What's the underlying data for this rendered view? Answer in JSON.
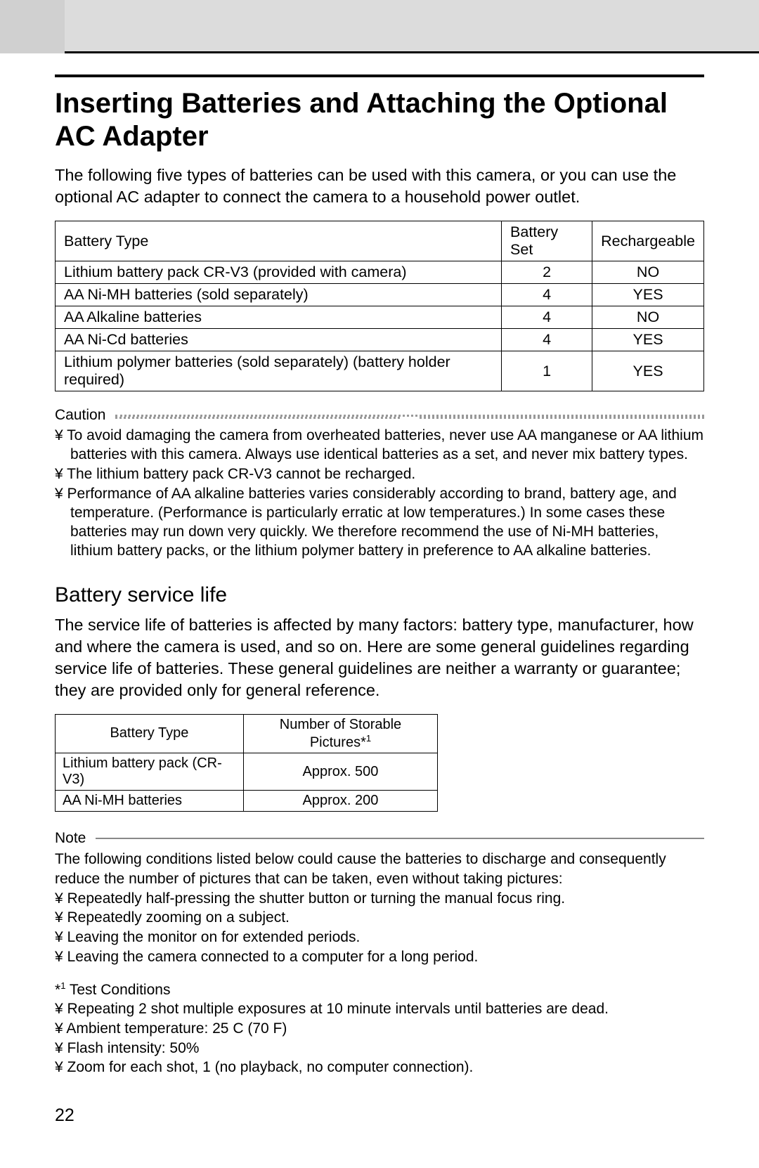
{
  "header": {
    "title": "Inserting Batteries and Attaching the Optional AC Adapter",
    "intro": "The following five types of batteries can be used with this camera, or you can use the optional AC adapter to connect the camera to a household  power outlet."
  },
  "battery_table": {
    "columns": [
      "Battery Type",
      "Battery Set",
      "Rechargeable"
    ],
    "rows": [
      [
        "Lithium battery pack CR-V3 (provided with camera)",
        "2",
        "NO"
      ],
      [
        "AA Ni-MH batteries (sold separately)",
        "4",
        "YES"
      ],
      [
        "AA Alkaline batteries",
        "4",
        "NO"
      ],
      [
        "AA Ni-Cd batteries",
        "4",
        "YES"
      ],
      [
        "Lithium polymer batteries (sold separately) (battery holder required)",
        "1",
        "YES"
      ]
    ],
    "col_align": [
      "left",
      "center",
      "center"
    ],
    "border_color": "#000000",
    "font_size": 21.5
  },
  "caution": {
    "label": "Caution",
    "items": [
      "To avoid damaging the camera from overheated batteries, never use AA manganese or AA lithium batteries with this camera. Always use identical batteries as a set, and never mix battery types.",
      "The lithium battery pack CR-V3 cannot be recharged.",
      "Performance of AA alkaline batteries varies considerably according to brand, battery age, and temperature. (Performance is particularly erratic at low temperatures.) In some cases these batteries may run down very quickly. We therefore recommend the use of Ni-MH batteries, lithium battery packs, or the lithium polymer battery in preference to AA alkaline batteries."
    ],
    "dot_color": "#999999"
  },
  "service_life": {
    "heading": "Battery service life",
    "intro": "The service life of batteries is affected by many factors: battery type, manufacturer, how and where the camera is used, and so on. Here are some general guidelines regarding service life of batteries. These general guidelines are neither a warranty or guarantee; they are provided only for general reference.",
    "table": {
      "columns": [
        "Battery Type",
        "Number of Storable Pictures*"
      ],
      "columns_sup": [
        "",
        "1"
      ],
      "rows": [
        [
          "Lithium battery pack (CR-V3)",
          "Approx. 500"
        ],
        [
          "AA Ni-MH batteries",
          "Approx. 200"
        ]
      ],
      "col_align": [
        "left",
        "center"
      ],
      "font_size": 20
    }
  },
  "note": {
    "label": "Note",
    "intro": "The following conditions listed below could cause the batteries to discharge and consequently reduce the number of pictures that can be taken, even without taking pictures:",
    "items": [
      "Repeatedly half-pressing the shutter button or turning the manual focus ring.",
      "Repeatedly zooming on a subject.",
      "Leaving the monitor on for extended periods.",
      "Leaving the camera connected to a computer for a long period."
    ],
    "line_color": "#888888"
  },
  "footnote": {
    "marker_sup": "1",
    "marker_text": " Test Conditions",
    "prefix": "*",
    "items": [
      "Repeating 2 shot multiple exposures at 10 minute intervals until batteries are dead.",
      "Ambient temperature: 25 C (70  F)",
      "Flash intensity: 50%",
      "Zoom for each shot, 1 (no playback, no computer connection)."
    ]
  },
  "page_number": "22",
  "colors": {
    "text": "#000000",
    "background": "#ffffff",
    "gray_bar": "#dcdcdc",
    "gray_bar_inner": "#d0d0d0"
  }
}
